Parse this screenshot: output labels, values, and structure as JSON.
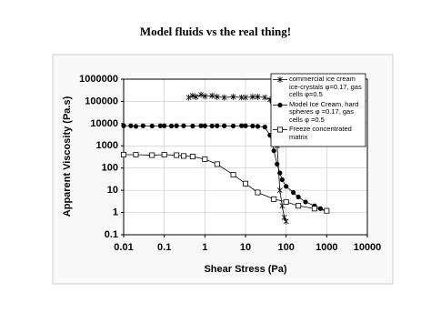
{
  "chart_data": {
    "type": "line",
    "title": "Model fluids vs the real thing!",
    "x_label": "Shear Stress (Pa)",
    "y_label": "Apparent Viscosity (Pa.s)",
    "xlog": true,
    "ylog": true,
    "grid": true,
    "xlim": [
      0.01,
      10000
    ],
    "ylim": [
      0.1,
      1000000
    ],
    "xticks": [
      0.01,
      0.1,
      1,
      10,
      100,
      1000,
      10000
    ],
    "yticks": [
      0.1,
      1,
      10,
      100,
      1000,
      10000,
      100000,
      1000000
    ],
    "legend": "upper right",
    "series": [
      {
        "name": "commercial ice cream ice-crystals φ=0.17, gas cells φ=0.5",
        "color": "#000000",
        "marker": "asterisk",
        "x": [
          0.4,
          0.5,
          0.6,
          0.8,
          1,
          1.5,
          2,
          3,
          5,
          8,
          10,
          15,
          20,
          30,
          40,
          50,
          60,
          70,
          80,
          90,
          100
        ],
        "values": [
          150000,
          180000,
          160000,
          200000,
          170000,
          180000,
          160000,
          150000,
          160000,
          150000,
          150000,
          160000,
          160000,
          150000,
          120000,
          15000,
          1000,
          10,
          2,
          0.6,
          0.4
        ]
      },
      {
        "name": "Model Ice Cream, hard spheres φ =0.17, gas cells φ =0.5",
        "color": "#000000",
        "marker": "circle",
        "x": [
          0.01,
          0.015,
          0.02,
          0.03,
          0.05,
          0.08,
          0.1,
          0.15,
          0.2,
          0.3,
          0.5,
          0.8,
          1,
          1.5,
          2,
          3,
          5,
          8,
          10,
          15,
          20,
          30,
          40,
          50,
          60,
          70,
          80,
          100,
          150,
          200,
          300,
          500,
          700,
          1000
        ],
        "values": [
          8000,
          8000,
          7500,
          8000,
          7800,
          8000,
          8000,
          7800,
          8000,
          8000,
          7800,
          8000,
          8000,
          7800,
          8000,
          8000,
          7800,
          8000,
          8000,
          7800,
          7500,
          7000,
          3000,
          600,
          150,
          60,
          30,
          15,
          8,
          5,
          3,
          2,
          1.5,
          1.2
        ]
      },
      {
        "name": "Freeze concentrated matrix",
        "color": "#000000",
        "marker": "square",
        "x": [
          0.01,
          0.02,
          0.05,
          0.1,
          0.2,
          0.3,
          0.5,
          1,
          2,
          5,
          10,
          20,
          50,
          100,
          200,
          500,
          1000
        ],
        "values": [
          400,
          400,
          380,
          400,
          380,
          350,
          330,
          250,
          150,
          50,
          20,
          8,
          4,
          3,
          2,
          1.5,
          1.2
        ]
      }
    ]
  }
}
